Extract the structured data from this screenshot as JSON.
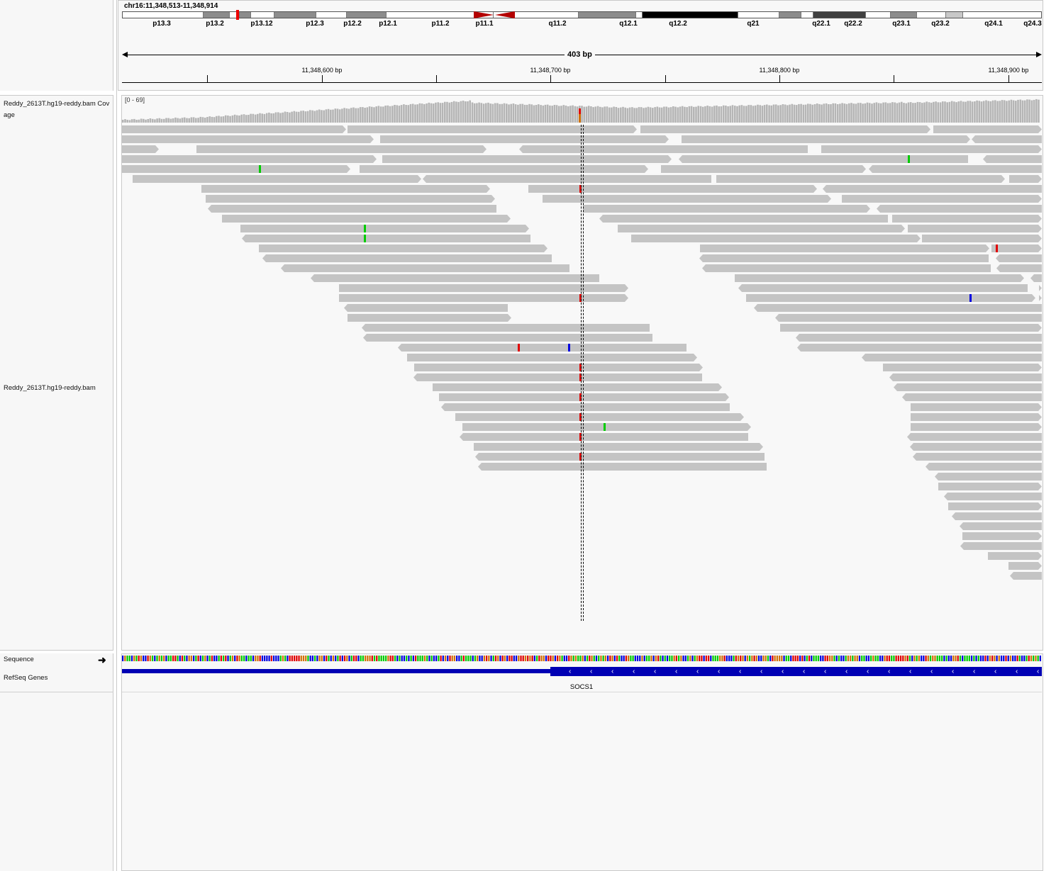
{
  "locus": "chr16:11,348,513-11,348,914",
  "ideogram_bands": [
    {
      "name": "p13.3",
      "color": "#ffffff"
    },
    {
      "name": "p13.2",
      "color": "#8c8c8c"
    },
    {
      "name": "p13.13",
      "color": "#ffffff"
    },
    {
      "name": "p13.12",
      "color": "#8c8c8c"
    },
    {
      "name": "p13.11",
      "color": "#ffffff"
    },
    {
      "name": "p12.3",
      "color": "#8c8c8c"
    },
    {
      "name": "p12.2",
      "color": "#ffffff"
    },
    {
      "name": "p12.1",
      "color": "#8c8c8c"
    },
    {
      "name": "p11.2",
      "color": "#ffffff"
    },
    {
      "name": "q11.2",
      "color": "#ffffff"
    },
    {
      "name": "q12.1",
      "color": "#ffffff"
    },
    {
      "name": "q12.2",
      "color": "#8c8c8c"
    },
    {
      "name": "q13",
      "color": "#ffffff"
    },
    {
      "name": "q21",
      "color": "#000000"
    },
    {
      "name": "q22.1",
      "color": "#ffffff"
    },
    {
      "name": "q22.2",
      "color": "#8c8c8c"
    },
    {
      "name": "q22.3",
      "color": "#ffffff"
    },
    {
      "name": "q23.1",
      "color": "#404040"
    },
    {
      "name": "q23.2",
      "color": "#ffffff"
    },
    {
      "name": "q23.3",
      "color": "#8c8c8c"
    },
    {
      "name": "q24.1",
      "color": "#ffffff"
    },
    {
      "name": "q24.2",
      "color": "#c8c8c8"
    },
    {
      "name": "q24.3",
      "color": "#ffffff"
    }
  ],
  "ideogram_labels": [
    "p13.3",
    "p13.2",
    "p13.12",
    "p12.3",
    "p12.2",
    "p12.1",
    "p11.2",
    "p11.1",
    "q11.2",
    "q12.1",
    "q12.2",
    "q21",
    "q22.1",
    "q22.2",
    "q23.1",
    "q23.2",
    "q24.1",
    "q24.3"
  ],
  "span_label": "403 bp",
  "ruler_ticks": [
    "11,348,600 bp",
    "11,348,700 bp",
    "11,348,800 bp",
    "11,348,900 bp"
  ],
  "tracks": {
    "coverage_name": "Reddy_2613T.hg19-reddy.bam Coverage",
    "coverage_name_line1": "Reddy_2613T.hg19-reddy.bam Cov",
    "coverage_name_line2": "age",
    "coverage_range": "[0 - 69]",
    "alignment_name": "Reddy_2613T.hg19-reddy.bam",
    "sequence_name": "Sequence",
    "genes_name": "RefSeq Genes"
  },
  "gene": {
    "name": "SOCS1",
    "strand": "-"
  },
  "colors": {
    "read": "#c4c4c4",
    "mismatch_A": "#00cc00",
    "mismatch_T": "#e00000",
    "mismatch_C": "#0000e0",
    "mismatch_G": "#d17105",
    "gene": "#0000b4"
  }
}
